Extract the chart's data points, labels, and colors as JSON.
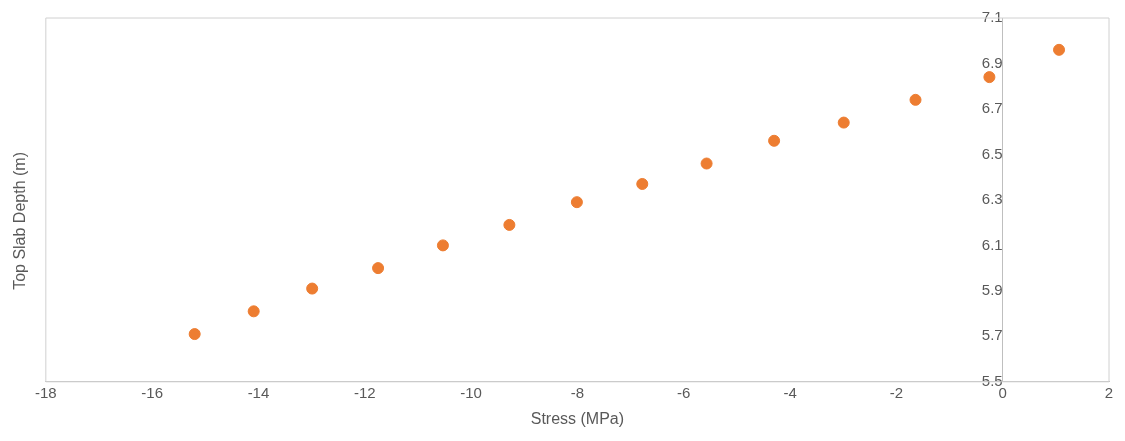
{
  "chart_data": {
    "type": "scatter",
    "xlabel": "Stress (MPa)",
    "ylabel": "Top Slab Depth (m)",
    "x": [
      -15.2,
      -14.09,
      -12.99,
      -11.75,
      -10.53,
      -9.28,
      -8.01,
      -6.78,
      -5.57,
      -4.3,
      -2.99,
      -1.64,
      -0.25,
      1.06
    ],
    "series": [
      {
        "color": "#ed7d31",
        "values": [
          5.71,
          5.81,
          5.91,
          6.0,
          6.1,
          6.19,
          6.29,
          6.37,
          6.46,
          6.56,
          6.64,
          6.74,
          6.84,
          6.96
        ]
      }
    ],
    "xlim": [
      -18,
      2
    ],
    "xticks": [
      -18,
      -16,
      -14,
      -12,
      -10,
      -8,
      -6,
      -4,
      -2,
      0,
      2
    ],
    "ylim": [
      5.5,
      7.1
    ],
    "yticks": [
      5.5,
      5.7,
      5.9,
      6.1,
      6.3,
      6.5,
      6.7,
      6.9,
      7.1
    ],
    "marker": "circle",
    "grid": false,
    "legend": false
  }
}
